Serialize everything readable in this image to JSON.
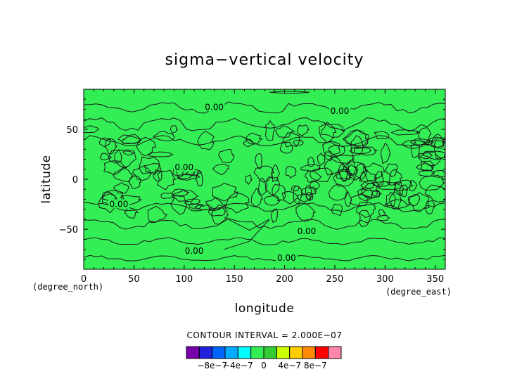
{
  "chart_data": {
    "type": "heatmap",
    "title": "sigma−vertical velocity",
    "xlabel": "longitude",
    "ylabel": "latitude",
    "x_unit": "(degree_east)",
    "y_unit": "(degree_north)",
    "xlim": [
      0,
      360
    ],
    "ylim": [
      -90,
      90
    ],
    "x_ticks": [
      "0",
      "50",
      "100",
      "150",
      "200",
      "250",
      "300",
      "350"
    ],
    "x_tick_values": [
      0,
      50,
      100,
      150,
      200,
      250,
      300,
      350
    ],
    "y_ticks": [
      "50",
      "0",
      "−50"
    ],
    "y_tick_values": [
      50,
      0,
      -50
    ],
    "contour_interval_text": "CONTOUR INTERVAL = 2.000E−07",
    "contour_labels": [
      {
        "text": "0.00",
        "x": 130,
        "y": 70
      },
      {
        "text": "0.00",
        "x": 255,
        "y": 66
      },
      {
        "text": "0.00",
        "x": 100,
        "y": 10
      },
      {
        "text": "0.00",
        "x": 35,
        "y": -27
      },
      {
        "text": "0.00",
        "x": 222,
        "y": -54
      },
      {
        "text": "0.00",
        "x": 110,
        "y": -74
      },
      {
        "text": "0.00",
        "x": 202,
        "y": -81
      }
    ],
    "dominant_value": 0,
    "field_color": "#33ee55",
    "colorbar": {
      "colors": [
        "#7700aa",
        "#2222dd",
        "#0066ff",
        "#00aaff",
        "#00ffff",
        "#33ee55",
        "#33cc33",
        "#ccff00",
        "#ffcc00",
        "#ff8800",
        "#ff0000",
        "#ff88aa"
      ],
      "tick_labels": [
        "−8e−7",
        "−4e−7",
        "0",
        "4e−7",
        "8e−7"
      ]
    }
  }
}
